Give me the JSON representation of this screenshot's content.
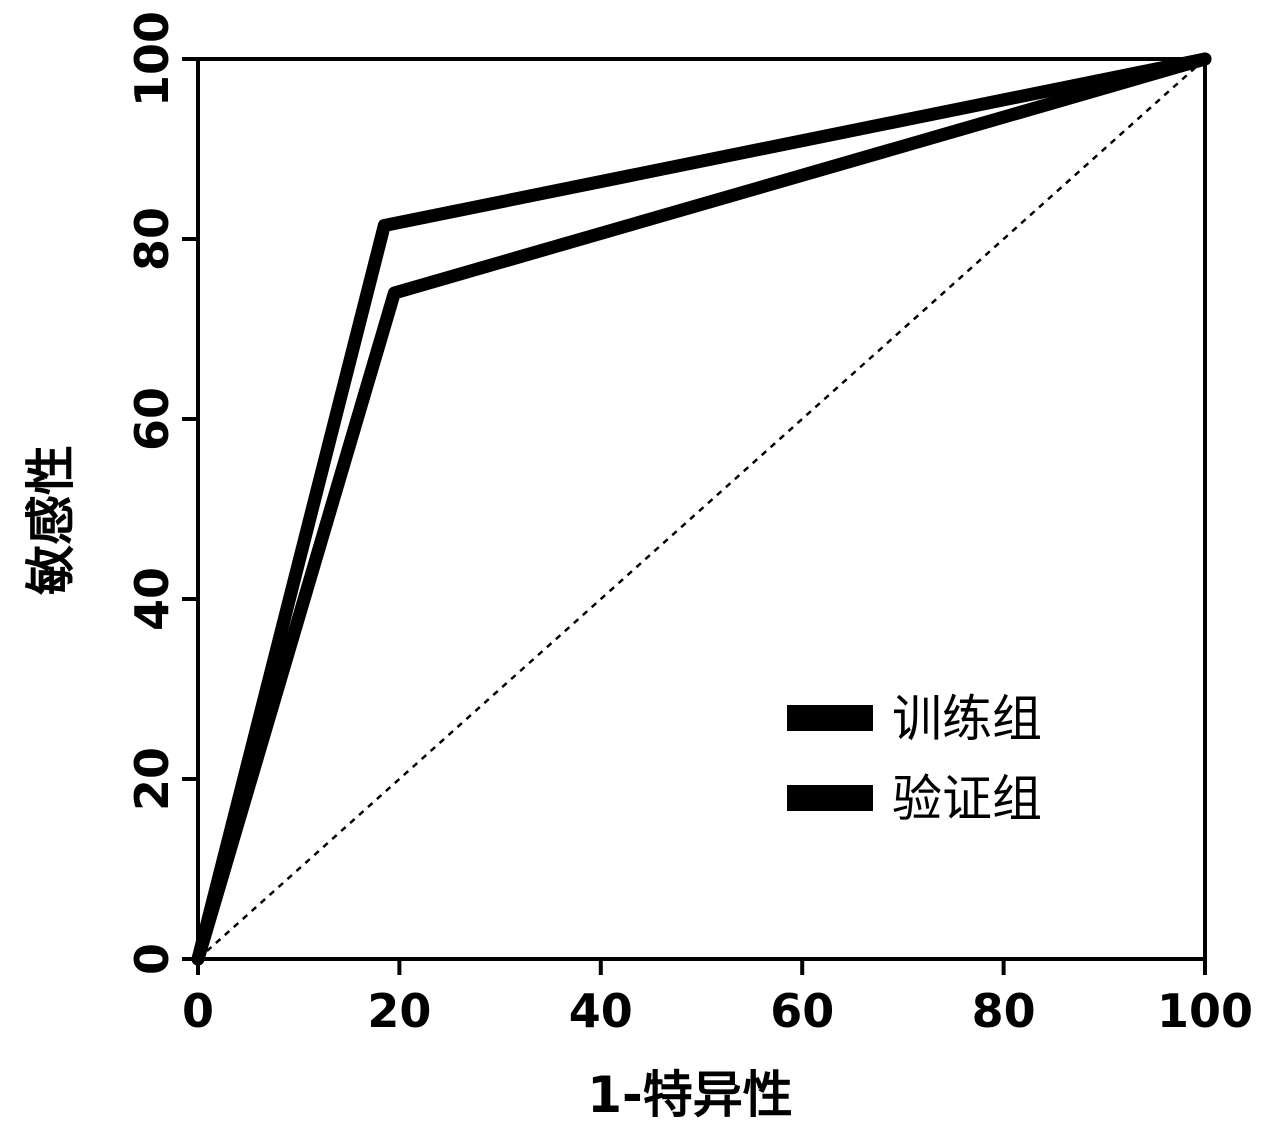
{
  "chart_data": {
    "type": "line",
    "xlabel": "1-特异性",
    "ylabel": "敏感性",
    "xlim": [
      0,
      100
    ],
    "ylim": [
      0,
      100
    ],
    "xticks": [
      0,
      20,
      40,
      60,
      80,
      100
    ],
    "yticks": [
      0,
      20,
      40,
      60,
      80,
      100
    ],
    "xtick_labels": [
      "0",
      "20",
      "40",
      "60",
      "80",
      "100"
    ],
    "ytick_labels": [
      "0",
      "20",
      "40",
      "60",
      "80",
      "100"
    ],
    "grid": false,
    "legend_position": "bottom-right",
    "series": [
      {
        "name": "训练组",
        "color": "#000000",
        "x": [
          0,
          18.5,
          100
        ],
        "y": [
          0,
          81.5,
          100
        ]
      },
      {
        "name": "验证组",
        "color": "#000000",
        "x": [
          0,
          19.5,
          100
        ],
        "y": [
          0,
          74,
          100
        ]
      }
    ],
    "reference_line": {
      "style": "dashed",
      "color": "#000000",
      "x": [
        0,
        100
      ],
      "y": [
        0,
        100
      ]
    }
  }
}
